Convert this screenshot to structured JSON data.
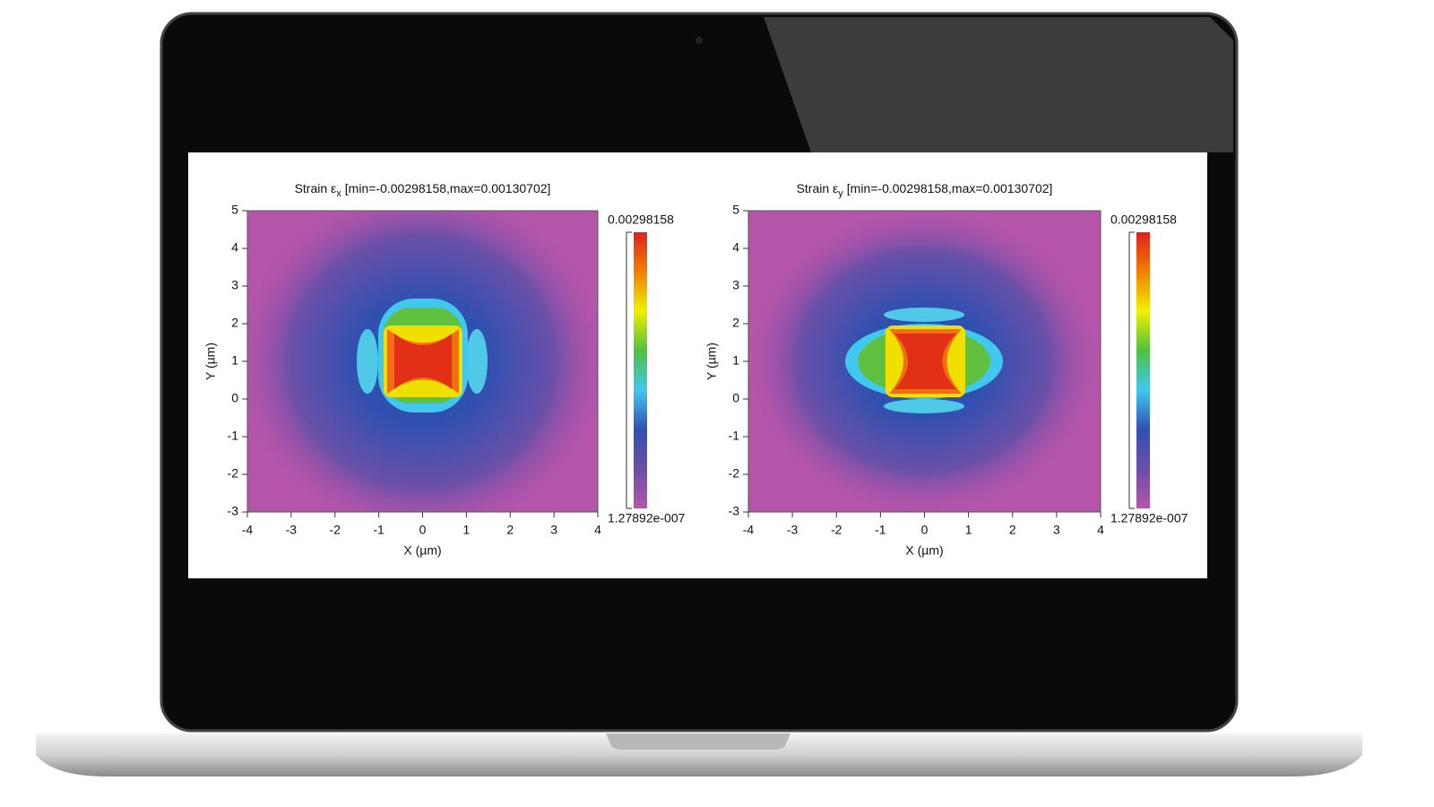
{
  "chart_data": [
    {
      "type": "heatmap",
      "title": "Strain ε",
      "title_subscript": "x",
      "title_suffix": "[min=-0.00298158,max=0.00130702]",
      "x_label": "X (µm)",
      "y_label": "Y (µm)",
      "xlim": [
        -4,
        4
      ],
      "xticks": [
        -4,
        -3,
        -2,
        -1,
        0,
        1,
        2,
        3,
        4
      ],
      "ylim": [
        -3,
        5
      ],
      "yticks": [
        -3,
        -2,
        -1,
        0,
        1,
        2,
        3,
        4,
        5
      ],
      "clim": [
        1.27892e-07,
        0.00298158
      ],
      "colorbar_ticks": [
        {
          "value": 1.27892e-07,
          "label": "1.27892e-007"
        },
        0.00298158
      ],
      "colormap": [
        "#b455aa",
        "#6a50a8",
        "#3050b0",
        "#40c8f0",
        "#50c040",
        "#f0f000",
        "#f08000",
        "#e02020"
      ]
    },
    {
      "type": "heatmap",
      "title": "Strain ε",
      "title_subscript": "y",
      "title_suffix": "[min=-0.00298158,max=0.00130702]",
      "x_label": "X (µm)",
      "y_label": "Y (µm)",
      "xlim": [
        -4,
        4
      ],
      "xticks": [
        -4,
        -3,
        -2,
        -1,
        0,
        1,
        2,
        3,
        4
      ],
      "ylim": [
        -3,
        5
      ],
      "yticks": [
        -3,
        -2,
        -1,
        0,
        1,
        2,
        3,
        4,
        5
      ],
      "clim": [
        1.27892e-07,
        0.00298158
      ],
      "colorbar_ticks": [
        {
          "value": 1.27892e-07,
          "label": "1.27892e-007"
        },
        0.00298158
      ],
      "colormap": [
        "#b455aa",
        "#6a50a8",
        "#3050b0",
        "#40c8f0",
        "#50c040",
        "#f0f000",
        "#f08000",
        "#e02020"
      ]
    }
  ]
}
